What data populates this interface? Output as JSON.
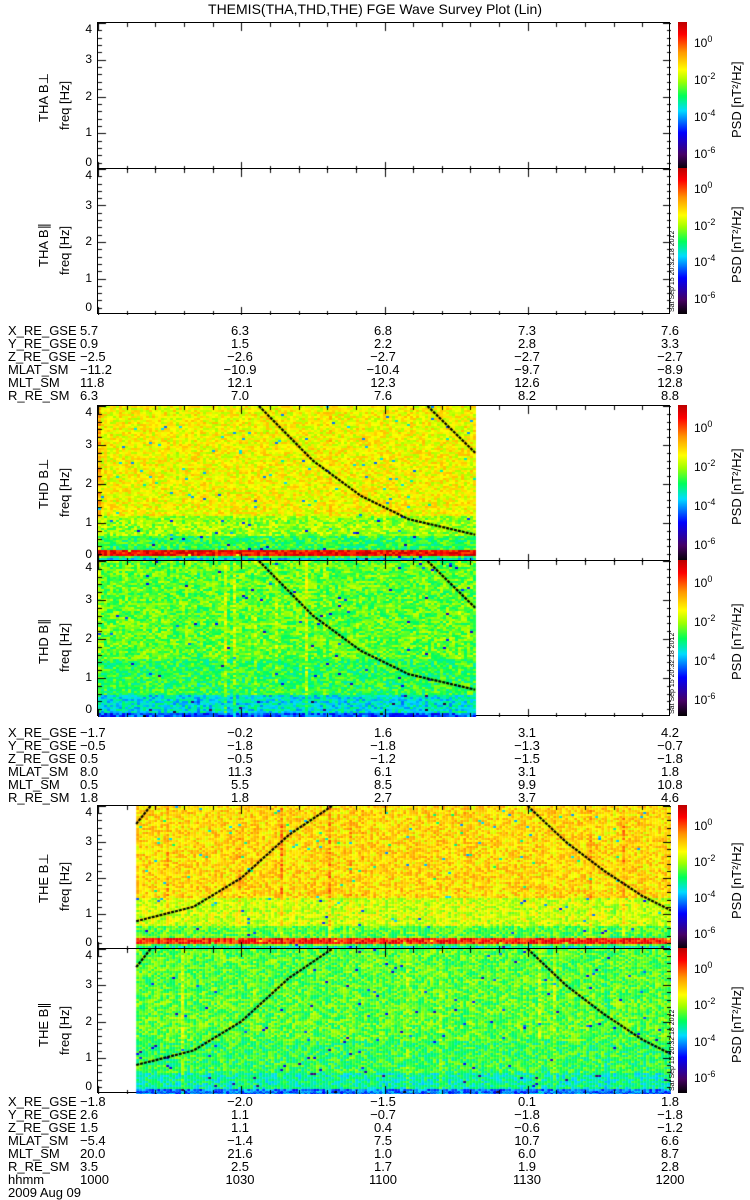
{
  "title": "THEMIS(THA,THD,THE) FGE Wave Survey Plot (Lin)",
  "stamp": "Sat Sep 15 20:32:18 2012",
  "colorbar": {
    "label": "PSD [nT²/Hz]",
    "ticks": [
      {
        "exp": "0"
      },
      {
        "exp": "-2"
      },
      {
        "exp": "-4"
      },
      {
        "exp": "-6"
      }
    ],
    "log_range": [
      -7,
      1
    ]
  },
  "chart_data": {
    "type": "heatmap",
    "xlabel": "hhmm",
    "x_ticks": [
      "1000",
      "1030",
      "1100",
      "1130",
      "1200"
    ],
    "x_range_minutes": [
      0,
      120
    ],
    "date": "2009 Aug 09",
    "ylabel": "freq [Hz]",
    "y_ticks": [
      "0",
      "1",
      "2",
      "3",
      "4"
    ],
    "ylim": [
      0,
      4
    ],
    "panels": [
      {
        "probe": "THA",
        "component": "B⊥",
        "label": "THA B⊥",
        "has_data": false
      },
      {
        "probe": "THA",
        "component": "B∥",
        "label": "THA B∥",
        "has_data": false
      },
      {
        "probe": "THD",
        "component": "B⊥",
        "label": "THD B⊥",
        "has_data": true,
        "data_minutes": [
          0,
          79
        ],
        "curves": [
          [
            [
              33.7,
              4
            ],
            [
              45,
              2.6
            ],
            [
              55,
              1.7
            ],
            [
              65,
              1.1
            ],
            [
              79,
              0.7
            ]
          ],
          [
            [
              69,
              4
            ],
            [
              74,
              3.4
            ],
            [
              79,
              2.8
            ]
          ]
        ]
      },
      {
        "probe": "THD",
        "component": "B∥",
        "label": "THD B∥",
        "has_data": true,
        "data_minutes": [
          0,
          79
        ],
        "curves": [
          [
            [
              33.7,
              4
            ],
            [
              45,
              2.6
            ],
            [
              55,
              1.7
            ],
            [
              65,
              1.1
            ],
            [
              79,
              0.7
            ]
          ],
          [
            [
              69,
              4
            ],
            [
              74,
              3.4
            ],
            [
              79,
              2.8
            ]
          ]
        ]
      },
      {
        "probe": "THE",
        "component": "B⊥",
        "label": "THE B⊥",
        "has_data": true,
        "data_minutes": [
          8,
          120
        ],
        "curves": [
          [
            [
              8,
              0.8
            ],
            [
              20,
              1.2
            ],
            [
              30,
              2
            ],
            [
              40,
              3.2
            ],
            [
              49,
              4
            ]
          ],
          [
            [
              8,
              3.5
            ],
            [
              11,
              4
            ]
          ],
          [
            [
              90,
              4
            ],
            [
              98,
              3
            ],
            [
              106,
              2.2
            ],
            [
              114,
              1.5
            ],
            [
              120,
              1.1
            ]
          ]
        ]
      },
      {
        "probe": "THE",
        "component": "B∥",
        "label": "THE B∥",
        "has_data": true,
        "data_minutes": [
          8,
          120
        ],
        "curves": [
          [
            [
              8,
              0.8
            ],
            [
              20,
              1.2
            ],
            [
              30,
              2
            ],
            [
              40,
              3.2
            ],
            [
              49,
              4
            ]
          ],
          [
            [
              8,
              3.5
            ],
            [
              11,
              4
            ]
          ],
          [
            [
              90,
              4
            ],
            [
              98,
              3
            ],
            [
              106,
              2.2
            ],
            [
              114,
              1.5
            ],
            [
              120,
              1.1
            ]
          ]
        ]
      }
    ]
  },
  "ephemeris": [
    {
      "probe": "THA",
      "rows": [
        {
          "label": "X_RE_GSE",
          "values": [
            "5.7",
            "6.3",
            "6.8",
            "7.3",
            "7.6"
          ]
        },
        {
          "label": "Y_RE_GSE",
          "values": [
            "0.9",
            "1.5",
            "2.2",
            "2.8",
            "3.3"
          ]
        },
        {
          "label": "Z_RE_GSE",
          "values": [
            "−2.5",
            "−2.6",
            "−2.7",
            "−2.7",
            "−2.7"
          ]
        },
        {
          "label": "MLAT_SM",
          "values": [
            "−11.2",
            "−10.9",
            "−10.4",
            "−9.7",
            "−8.9"
          ]
        },
        {
          "label": "MLT_SM",
          "values": [
            "11.8",
            "12.1",
            "12.3",
            "12.6",
            "12.8"
          ]
        },
        {
          "label": "R_RE_SM",
          "values": [
            "6.3",
            "7.0",
            "7.6",
            "8.2",
            "8.8"
          ]
        }
      ]
    },
    {
      "probe": "THD",
      "rows": [
        {
          "label": "X_RE_GSE",
          "values": [
            "−1.7",
            "−0.2",
            "1.6",
            "3.1",
            "4.2"
          ]
        },
        {
          "label": "Y_RE_GSE",
          "values": [
            "−0.5",
            "−1.8",
            "−1.8",
            "−1.3",
            "−0.7"
          ]
        },
        {
          "label": "Z_RE_GSE",
          "values": [
            "0.5",
            "−0.5",
            "−1.2",
            "−1.5",
            "−1.8"
          ]
        },
        {
          "label": "MLAT_SM",
          "values": [
            "8.0",
            "11.3",
            "6.1",
            "3.1",
            "1.8"
          ]
        },
        {
          "label": "MLT_SM",
          "values": [
            "0.5",
            "5.5",
            "8.5",
            "9.9",
            "10.8"
          ]
        },
        {
          "label": "R_RE_SM",
          "values": [
            "1.8",
            "1.8",
            "2.7",
            "3.7",
            "4.6"
          ]
        }
      ]
    },
    {
      "probe": "THE",
      "rows": [
        {
          "label": "X_RE_GSE",
          "values": [
            "−1.8",
            "−2.0",
            "−1.5",
            "0.1",
            "1.8"
          ]
        },
        {
          "label": "Y_RE_GSE",
          "values": [
            "2.6",
            "1.1",
            "−0.7",
            "−1.8",
            "−1.8"
          ]
        },
        {
          "label": "Z_RE_GSE",
          "values": [
            "1.5",
            "1.1",
            "0.4",
            "−0.6",
            "−1.2"
          ]
        },
        {
          "label": "MLAT_SM",
          "values": [
            "−5.4",
            "−1.4",
            "7.5",
            "10.7",
            "6.6"
          ]
        },
        {
          "label": "MLT_SM",
          "values": [
            "20.0",
            "21.6",
            "1.0",
            "6.0",
            "8.7"
          ]
        },
        {
          "label": "R_RE_SM",
          "values": [
            "3.5",
            "2.5",
            "1.7",
            "1.9",
            "2.8"
          ]
        },
        {
          "label": "hhmm",
          "values": [
            "1000",
            "1030",
            "1100",
            "1130",
            "1200"
          ]
        }
      ]
    }
  ]
}
